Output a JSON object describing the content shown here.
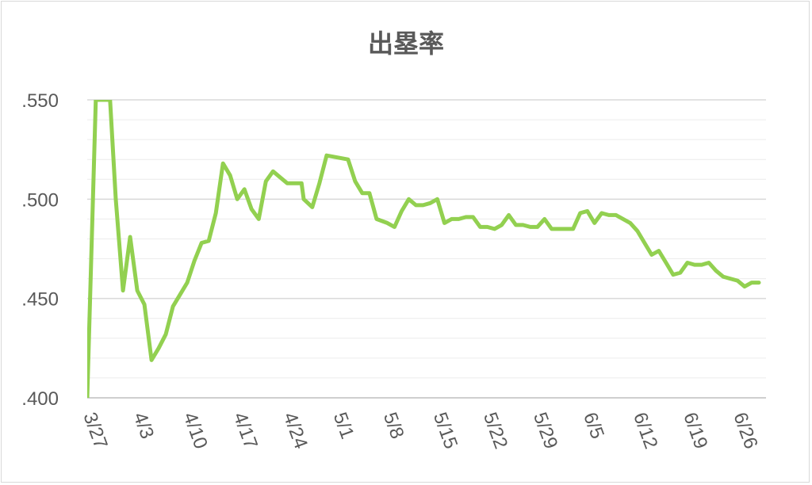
{
  "chart_data": {
    "type": "line",
    "title": "出塁率",
    "xlabel": "",
    "ylabel": "",
    "ylim": [
      0.4,
      0.55
    ],
    "xlim": [
      0,
      106
    ],
    "y_ticks": [
      {
        "value": 0.4,
        "label": ".400"
      },
      {
        "value": 0.45,
        "label": ".450"
      },
      {
        "value": 0.5,
        "label": ".500"
      },
      {
        "value": 0.55,
        "label": ".550"
      }
    ],
    "minor_gridline_step": 0.01,
    "x_ticks": [
      {
        "x": 0,
        "label": "3/27"
      },
      {
        "x": 7,
        "label": "4/3"
      },
      {
        "x": 14,
        "label": "4/10"
      },
      {
        "x": 21,
        "label": "4/17"
      },
      {
        "x": 28,
        "label": "4/24"
      },
      {
        "x": 35,
        "label": "5/1"
      },
      {
        "x": 42,
        "label": "5/8"
      },
      {
        "x": 49,
        "label": "5/15"
      },
      {
        "x": 56,
        "label": "5/22"
      },
      {
        "x": 63,
        "label": "5/29"
      },
      {
        "x": 70,
        "label": "6/5"
      },
      {
        "x": 77,
        "label": "6/12"
      },
      {
        "x": 84,
        "label": "6/19"
      },
      {
        "x": 91,
        "label": "6/26"
      }
    ],
    "grid": true,
    "series": [
      {
        "color": "#92d050",
        "points": [
          [
            0,
            0.4
          ],
          [
            1.2,
            0.55
          ],
          [
            3.2,
            0.55
          ],
          [
            4,
            0.5
          ],
          [
            5,
            0.454
          ],
          [
            6,
            0.481
          ],
          [
            7,
            0.454
          ],
          [
            8,
            0.447
          ],
          [
            9,
            0.419
          ],
          [
            10,
            0.425
          ],
          [
            11,
            0.432
          ],
          [
            12,
            0.446
          ],
          [
            13,
            0.452
          ],
          [
            14,
            0.458
          ],
          [
            15,
            0.469
          ],
          [
            16,
            0.478
          ],
          [
            17,
            0.479
          ],
          [
            18,
            0.493
          ],
          [
            19,
            0.518
          ],
          [
            20,
            0.512
          ],
          [
            21,
            0.5
          ],
          [
            22,
            0.505
          ],
          [
            23,
            0.495
          ],
          [
            24,
            0.49
          ],
          [
            25,
            0.509
          ],
          [
            26,
            0.514
          ],
          [
            27,
            0.511
          ],
          [
            28,
            0.508
          ],
          [
            29,
            0.508
          ],
          [
            30,
            0.508
          ],
          [
            30.3,
            0.5
          ],
          [
            31.5,
            0.496
          ],
          [
            32.5,
            0.508
          ],
          [
            33.5,
            0.522
          ],
          [
            35,
            0.521
          ],
          [
            36.5,
            0.52
          ],
          [
            37.5,
            0.509
          ],
          [
            38.5,
            0.503
          ],
          [
            39.5,
            0.503
          ],
          [
            40.5,
            0.49
          ],
          [
            42,
            0.488
          ],
          [
            43,
            0.486
          ],
          [
            44,
            0.494
          ],
          [
            45,
            0.5
          ],
          [
            46,
            0.497
          ],
          [
            47,
            0.497
          ],
          [
            48,
            0.498
          ],
          [
            49,
            0.5
          ],
          [
            50,
            0.488
          ],
          [
            51,
            0.49
          ],
          [
            52,
            0.49
          ],
          [
            53,
            0.491
          ],
          [
            54,
            0.491
          ],
          [
            55,
            0.486
          ],
          [
            56,
            0.486
          ],
          [
            57,
            0.485
          ],
          [
            58,
            0.487
          ],
          [
            59,
            0.492
          ],
          [
            60,
            0.487
          ],
          [
            61,
            0.487
          ],
          [
            62,
            0.486
          ],
          [
            63,
            0.486
          ],
          [
            64,
            0.49
          ],
          [
            65,
            0.485
          ],
          [
            66,
            0.485
          ],
          [
            67,
            0.485
          ],
          [
            68,
            0.485
          ],
          [
            69,
            0.493
          ],
          [
            70,
            0.494
          ],
          [
            71,
            0.488
          ],
          [
            72,
            0.493
          ],
          [
            73,
            0.492
          ],
          [
            74,
            0.492
          ],
          [
            75,
            0.49
          ],
          [
            76,
            0.488
          ],
          [
            77,
            0.484
          ],
          [
            78,
            0.478
          ],
          [
            79,
            0.472
          ],
          [
            80,
            0.474
          ],
          [
            81,
            0.468
          ],
          [
            82,
            0.462
          ],
          [
            83,
            0.463
          ],
          [
            84,
            0.468
          ],
          [
            85,
            0.467
          ],
          [
            86,
            0.467
          ],
          [
            87,
            0.468
          ],
          [
            88,
            0.464
          ],
          [
            89,
            0.461
          ],
          [
            90,
            0.46
          ],
          [
            91,
            0.459
          ],
          [
            92,
            0.456
          ],
          [
            93,
            0.458
          ],
          [
            94,
            0.458
          ]
        ]
      }
    ]
  }
}
